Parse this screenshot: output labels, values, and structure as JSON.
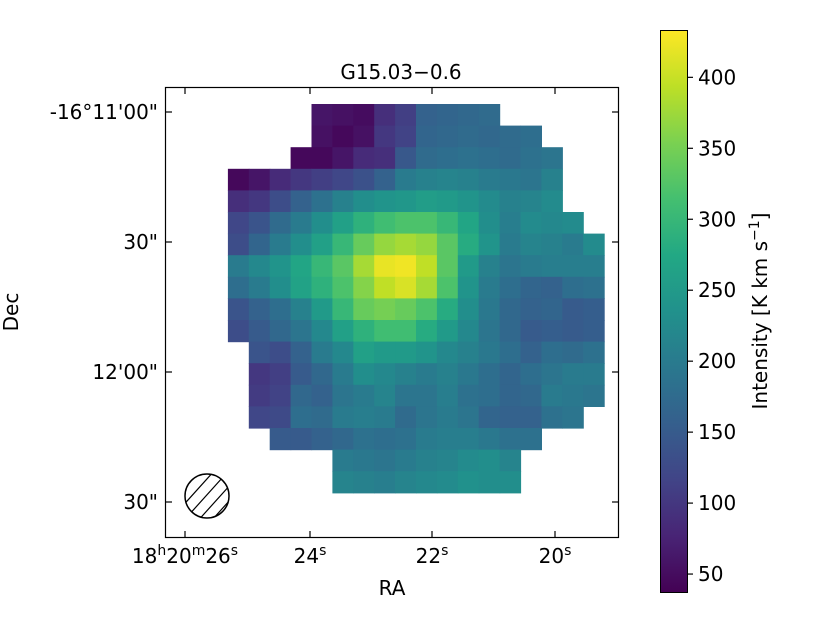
{
  "chart_data": {
    "type": "heatmap",
    "title": "G15.03−0.6",
    "xlabel": "RA",
    "ylabel": "Dec",
    "x_ticks": [
      {
        "pre": "18",
        "s1": "h",
        "mid": "20",
        "s2": "m",
        "post": "26",
        "s3": "s"
      },
      {
        "pre": "",
        "s1": "",
        "mid": "",
        "s2": "",
        "post": "24",
        "s3": "s"
      },
      {
        "pre": "",
        "s1": "",
        "mid": "",
        "s2": "",
        "post": "22",
        "s3": "s"
      },
      {
        "pre": "",
        "s1": "",
        "mid": "",
        "s2": "",
        "post": "20",
        "s3": "s"
      }
    ],
    "y_ticks": [
      "-16°11'00\"",
      "30\"",
      "12'00\"",
      "30\""
    ],
    "colorbar": {
      "label": "Intensity [K km s",
      "label_sup": "−1",
      "label_end": "]",
      "range": [
        37,
        433
      ],
      "ticks": [
        50,
        100,
        150,
        200,
        250,
        300,
        350,
        400
      ],
      "colormap": "viridis"
    },
    "beam": "hatched circle, lower-left",
    "grid": {
      "rows": 18,
      "cols": 19,
      "values": [
        [
          null,
          null,
          null,
          null,
          null,
          60,
          55,
          50,
          90,
          110,
          160,
          165,
          170,
          175,
          null,
          null,
          null,
          null,
          null
        ],
        [
          null,
          null,
          null,
          null,
          null,
          55,
          45,
          55,
          100,
          115,
          165,
          170,
          175,
          170,
          175,
          180,
          null,
          null,
          null
        ],
        [
          null,
          null,
          null,
          null,
          45,
          45,
          60,
          85,
          90,
          145,
          175,
          180,
          185,
          180,
          175,
          185,
          190,
          null,
          null
        ],
        [
          null,
          45,
          60,
          85,
          100,
          110,
          120,
          135,
          160,
          200,
          210,
          215,
          210,
          200,
          195,
          190,
          210,
          null,
          null
        ],
        [
          null,
          90,
          100,
          130,
          160,
          185,
          210,
          230,
          240,
          245,
          255,
          250,
          240,
          225,
          210,
          215,
          225,
          null,
          null
        ],
        [
          null,
          120,
          140,
          175,
          200,
          230,
          260,
          290,
          310,
          320,
          320,
          300,
          270,
          230,
          205,
          225,
          220,
          225,
          null
        ],
        [
          null,
          130,
          165,
          200,
          230,
          260,
          300,
          340,
          370,
          380,
          370,
          330,
          280,
          240,
          200,
          215,
          210,
          200,
          225
        ],
        [
          null,
          200,
          220,
          240,
          270,
          300,
          330,
          380,
          420,
          425,
          395,
          330,
          250,
          210,
          190,
          200,
          205,
          205,
          205
        ],
        [
          null,
          180,
          200,
          230,
          265,
          290,
          320,
          360,
          395,
          410,
          380,
          320,
          240,
          200,
          180,
          165,
          160,
          180,
          185
        ],
        [
          null,
          140,
          160,
          180,
          210,
          250,
          300,
          340,
          350,
          340,
          320,
          280,
          230,
          195,
          170,
          160,
          165,
          150,
          155
        ],
        [
          null,
          130,
          150,
          170,
          190,
          220,
          260,
          290,
          310,
          310,
          280,
          250,
          220,
          190,
          170,
          150,
          155,
          150,
          155
        ],
        [
          null,
          null,
          140,
          130,
          160,
          200,
          220,
          260,
          250,
          250,
          240,
          220,
          210,
          195,
          180,
          160,
          180,
          175,
          185
        ],
        [
          null,
          null,
          100,
          110,
          150,
          170,
          200,
          230,
          220,
          210,
          200,
          210,
          195,
          180,
          165,
          180,
          190,
          200,
          200
        ],
        [
          null,
          null,
          105,
          115,
          170,
          160,
          190,
          200,
          215,
          190,
          190,
          205,
          185,
          180,
          165,
          170,
          200,
          195,
          190
        ],
        [
          null,
          null,
          120,
          125,
          180,
          175,
          200,
          205,
          200,
          175,
          190,
          200,
          190,
          165,
          160,
          160,
          185,
          190,
          null
        ],
        [
          null,
          null,
          null,
          150,
          150,
          160,
          170,
          185,
          180,
          185,
          200,
          205,
          205,
          195,
          185,
          185,
          null,
          null,
          null
        ],
        [
          null,
          null,
          null,
          null,
          null,
          null,
          200,
          195,
          190,
          200,
          210,
          215,
          225,
          230,
          215,
          null,
          null,
          null,
          null
        ],
        [
          null,
          null,
          null,
          null,
          null,
          null,
          215,
          210,
          205,
          215,
          220,
          225,
          235,
          230,
          230,
          null,
          null,
          null,
          null
        ]
      ]
    }
  }
}
